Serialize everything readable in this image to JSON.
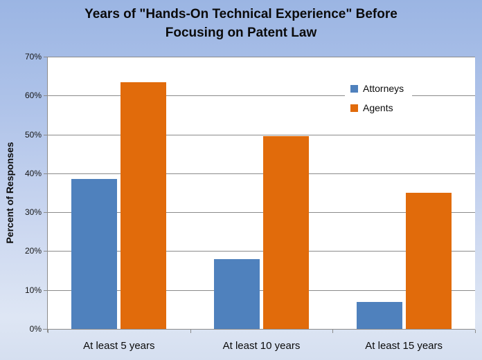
{
  "title": {
    "lines": [
      "Years of \"Hands-On Technical Experience\" Before",
      "Focusing on Patent Law"
    ]
  },
  "chart_data": {
    "type": "bar",
    "title": "Years of \"Hands-On Technical Experience\" Before Focusing on Patent Law",
    "categories": [
      "At least 5 years",
      "At least 10 years",
      "At least 15 years"
    ],
    "series": [
      {
        "name": "Attorneys",
        "color": "#4F81BD",
        "values": [
          38.5,
          18,
          7
        ]
      },
      {
        "name": "Agents",
        "color": "#E16B0B",
        "values": [
          63.5,
          49.5,
          35
        ]
      }
    ],
    "xlabel": "",
    "ylabel": "Percent of Responses",
    "ylim": [
      0,
      70
    ],
    "ytick_step": 10,
    "ytick_suffix": "%",
    "grid": true,
    "legend_position": "inside-top-right",
    "plot_bg": "#FFFFFF",
    "gridline_color": "#8A8A8A"
  }
}
